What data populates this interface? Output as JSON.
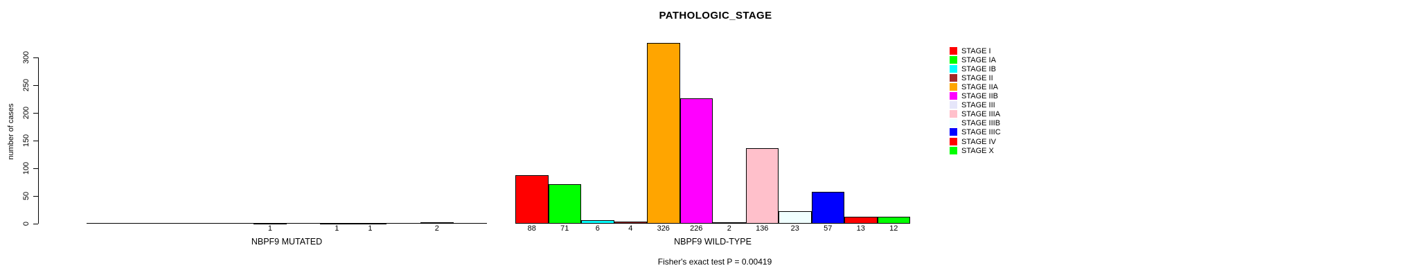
{
  "chart_data": {
    "type": "bar",
    "title": "PATHOLOGIC_STAGE",
    "ylabel": "number of cases",
    "ylim": [
      0,
      300
    ],
    "yticks": [
      0,
      50,
      100,
      150,
      200,
      250,
      300
    ],
    "categories": [
      "STAGE I",
      "STAGE IA",
      "STAGE IB",
      "STAGE II",
      "STAGE IIA",
      "STAGE IIB",
      "STAGE III",
      "STAGE IIIA",
      "STAGE IIIB",
      "STAGE IIIC",
      "STAGE IV",
      "STAGE X"
    ],
    "colors": [
      "#FF0000",
      "#00FF00",
      "#00FFFF",
      "#A52A2A",
      "#FFA500",
      "#FF00FF",
      "#E6E6FA",
      "#FFC0CB",
      "#F0FFFF",
      "#0000FF",
      "#FF0000",
      "#00FF00"
    ],
    "groups": [
      {
        "label": "NBPF9 MUTATED",
        "values": [
          0,
          0,
          0,
          0,
          0,
          1,
          0,
          1,
          1,
          0,
          2,
          0
        ],
        "label_zero_values": false
      },
      {
        "label": "NBPF9 WILD-TYPE",
        "values": [
          88,
          71,
          6,
          4,
          326,
          226,
          2,
          136,
          23,
          57,
          13,
          12
        ],
        "label_zero_values": true
      }
    ],
    "legend": {
      "position": "right",
      "entries": [
        "STAGE I",
        "STAGE IA",
        "STAGE IB",
        "STAGE II",
        "STAGE IIA",
        "STAGE IIB",
        "STAGE III",
        "STAGE IIIA",
        "STAGE IIIB",
        "STAGE IIIC",
        "STAGE IV",
        "STAGE X"
      ]
    },
    "footnote": "Fisher's exact test P = 0.00419",
    "grid": false
  }
}
